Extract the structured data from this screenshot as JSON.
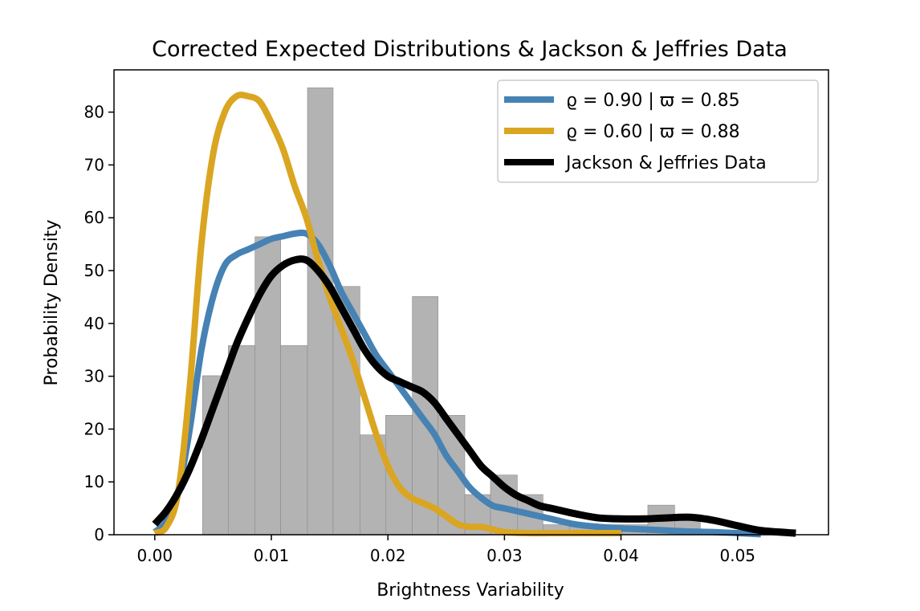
{
  "chart_data": {
    "type": "bar",
    "title": "Corrected Expected Distributions & Jackson & Jeffries Data",
    "xlabel": "Brightness Variability",
    "ylabel": "Probability Density",
    "xlim": [
      -0.0035,
      0.0578
    ],
    "ylim": [
      0,
      88
    ],
    "xticks": [
      0.0,
      0.01,
      0.02,
      0.03,
      0.04,
      0.05
    ],
    "xtick_labels": [
      "0.00",
      "0.01",
      "0.02",
      "0.03",
      "0.04",
      "0.05"
    ],
    "yticks": [
      0,
      10,
      20,
      30,
      40,
      50,
      60,
      70,
      80
    ],
    "ytick_labels": [
      "0",
      "10",
      "20",
      "30",
      "40",
      "50",
      "60",
      "70",
      "80"
    ],
    "grid": false,
    "legend_position": "top-right",
    "histogram": {
      "color": "#b3b3b3",
      "bin_edges": [
        0.0041,
        0.0063,
        0.0086,
        0.0108,
        0.0131,
        0.0153,
        0.0176,
        0.0198,
        0.0221,
        0.0243,
        0.0266,
        0.0288,
        0.0311,
        0.0333,
        0.0356,
        0.0378,
        0.0401,
        0.0423,
        0.0446,
        0.0468,
        0.0491
      ],
      "values": [
        30.1,
        35.8,
        56.4,
        35.8,
        84.6,
        47.0,
        18.9,
        22.6,
        45.1,
        22.6,
        7.6,
        11.3,
        7.6,
        1.9,
        1.9,
        1.9,
        1.9,
        5.6,
        3.8,
        0.0
      ]
    },
    "series": [
      {
        "name": "ϱ = 0.90 | ϖ = 0.85",
        "color": "#4682b4",
        "x": [
          0.0,
          0.001,
          0.002,
          0.003,
          0.004,
          0.005,
          0.006,
          0.007,
          0.008,
          0.009,
          0.01,
          0.011,
          0.012,
          0.013,
          0.014,
          0.015,
          0.016,
          0.017,
          0.018,
          0.019,
          0.02,
          0.021,
          0.022,
          0.023,
          0.024,
          0.025,
          0.026,
          0.027,
          0.028,
          0.029,
          0.03,
          0.031,
          0.032,
          0.033,
          0.034,
          0.036,
          0.038,
          0.04,
          0.042,
          0.044,
          0.046,
          0.048,
          0.05,
          0.052
        ],
        "y": [
          0.5,
          2.5,
          8.0,
          20.0,
          35.0,
          45.0,
          51.0,
          53.0,
          54.0,
          55.0,
          56.0,
          56.5,
          57.0,
          57.0,
          55.0,
          51.0,
          46.0,
          42.0,
          38.0,
          34.0,
          31.0,
          28.0,
          25.0,
          22.0,
          19.0,
          15.0,
          12.0,
          9.0,
          7.0,
          5.5,
          5.0,
          4.5,
          4.0,
          3.5,
          3.0,
          2.0,
          1.5,
          1.2,
          1.0,
          0.8,
          0.6,
          0.5,
          0.3,
          0.1
        ]
      },
      {
        "name": "ϱ = 0.60 | ϖ = 0.88",
        "color": "#daa520",
        "x": [
          0.0,
          0.001,
          0.002,
          0.003,
          0.004,
          0.005,
          0.006,
          0.007,
          0.008,
          0.009,
          0.01,
          0.011,
          0.012,
          0.013,
          0.014,
          0.015,
          0.016,
          0.017,
          0.018,
          0.019,
          0.02,
          0.021,
          0.022,
          0.023,
          0.024,
          0.025,
          0.026,
          0.027,
          0.028,
          0.029,
          0.03,
          0.032,
          0.034,
          0.036,
          0.038,
          0.04
        ],
        "y": [
          0.3,
          1.5,
          8.0,
          28.0,
          55.0,
          72.0,
          80.0,
          83.0,
          83.0,
          82.0,
          78.0,
          73.0,
          66.0,
          60.0,
          52.0,
          45.0,
          39.0,
          33.0,
          26.0,
          19.0,
          13.0,
          9.0,
          7.0,
          6.0,
          5.0,
          3.5,
          2.0,
          1.5,
          1.5,
          1.0,
          0.5,
          0.3,
          0.3,
          0.3,
          0.3,
          0.3
        ]
      },
      {
        "name": "Jackson & Jeffries Data",
        "color": "#000000",
        "x": [
          0.0,
          0.001,
          0.002,
          0.003,
          0.004,
          0.005,
          0.006,
          0.007,
          0.008,
          0.009,
          0.01,
          0.011,
          0.012,
          0.013,
          0.014,
          0.015,
          0.016,
          0.017,
          0.018,
          0.019,
          0.02,
          0.021,
          0.022,
          0.023,
          0.024,
          0.025,
          0.026,
          0.027,
          0.028,
          0.029,
          0.03,
          0.031,
          0.032,
          0.033,
          0.034,
          0.035,
          0.036,
          0.038,
          0.04,
          0.042,
          0.044,
          0.046,
          0.048,
          0.05,
          0.052,
          0.055
        ],
        "y": [
          2.0,
          4.5,
          8.0,
          12.5,
          18.0,
          24.0,
          30.0,
          36.0,
          41.0,
          45.5,
          49.0,
          51.0,
          52.0,
          52.0,
          50.0,
          47.0,
          43.0,
          39.0,
          35.0,
          32.0,
          30.0,
          29.0,
          28.0,
          27.0,
          25.0,
          22.0,
          19.0,
          16.0,
          13.0,
          11.0,
          9.0,
          7.5,
          6.5,
          5.5,
          5.0,
          4.5,
          4.0,
          3.2,
          3.0,
          3.0,
          3.2,
          3.3,
          2.7,
          1.7,
          0.8,
          0.3
        ]
      }
    ]
  }
}
